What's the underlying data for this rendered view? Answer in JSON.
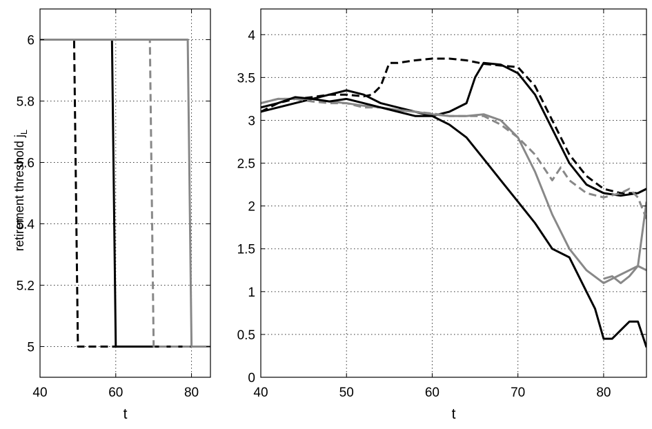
{
  "chart_data": [
    {
      "type": "line",
      "title": "",
      "xlabel": "t",
      "ylabel": "retirement threshold j",
      "ylabel_subscript": "L",
      "xlim": [
        40,
        85
      ],
      "ylim": [
        4.9,
        6.1
      ],
      "xticks": [
        40,
        60,
        80
      ],
      "yticks": [
        5,
        5.2,
        5.4,
        5.6,
        5.8,
        6
      ],
      "ytick_labels": [
        "5",
        "5.2",
        "5.4",
        "5.6",
        "5.8",
        "6"
      ],
      "grid": true,
      "series": [
        {
          "color": "#000000",
          "style": "dashed",
          "x": [
            40,
            49,
            50,
            60
          ],
          "y": [
            6,
            6,
            5,
            5
          ]
        },
        {
          "color": "#000000",
          "style": "solid",
          "x": [
            40,
            59,
            60,
            80
          ],
          "y": [
            6,
            6,
            5,
            5
          ]
        },
        {
          "color": "#888888",
          "style": "dashed",
          "x": [
            40,
            69,
            70,
            80
          ],
          "y": [
            6,
            6,
            5,
            5
          ]
        },
        {
          "color": "#888888",
          "style": "solid",
          "x": [
            40,
            79,
            80,
            85
          ],
          "y": [
            6,
            6,
            5,
            5
          ]
        }
      ]
    },
    {
      "type": "line",
      "title": "",
      "xlabel": "t",
      "ylabel": "",
      "xlim": [
        40,
        85
      ],
      "ylim": [
        0,
        4.3
      ],
      "xticks": [
        40,
        50,
        60,
        70,
        80
      ],
      "yticks": [
        0,
        0.5,
        1,
        1.5,
        2,
        2.5,
        3,
        3.5,
        4
      ],
      "ytick_labels": [
        "0",
        "0.5",
        "1",
        "1.5",
        "2",
        "2.5",
        "3",
        "3.5",
        "4"
      ],
      "grid": true,
      "series": [
        {
          "color": "#000000",
          "style": "dashed",
          "x": [
            40,
            42,
            44,
            46,
            48,
            50,
            52,
            53,
            54,
            55,
            56,
            58,
            60,
            62,
            64,
            66,
            68,
            70,
            72,
            74,
            76,
            78,
            80,
            82,
            84,
            85
          ],
          "y": [
            3.1,
            3.2,
            3.25,
            3.27,
            3.3,
            3.3,
            3.28,
            3.3,
            3.4,
            3.67,
            3.67,
            3.7,
            3.72,
            3.72,
            3.7,
            3.66,
            3.64,
            3.62,
            3.4,
            3.0,
            2.6,
            2.35,
            2.2,
            2.15,
            2.15,
            2.2
          ]
        },
        {
          "color": "#000000",
          "style": "solid",
          "x": [
            40,
            42,
            44,
            46,
            48,
            50,
            52,
            54,
            56,
            58,
            60,
            62,
            64,
            65,
            66,
            68,
            70,
            72,
            74,
            76,
            78,
            80,
            82,
            84,
            85
          ],
          "y": [
            3.1,
            3.15,
            3.2,
            3.25,
            3.3,
            3.35,
            3.3,
            3.2,
            3.15,
            3.1,
            3.05,
            3.1,
            3.2,
            3.5,
            3.67,
            3.65,
            3.55,
            3.3,
            2.9,
            2.5,
            2.25,
            2.15,
            2.12,
            2.15,
            2.2
          ]
        },
        {
          "color": "#888888",
          "style": "dashed",
          "x": [
            40,
            42,
            44,
            46,
            48,
            50,
            52,
            54,
            56,
            58,
            60,
            62,
            64,
            66,
            68,
            70,
            72,
            74,
            75,
            76,
            78,
            80,
            82,
            83,
            84,
            85
          ],
          "y": [
            3.2,
            3.25,
            3.25,
            3.22,
            3.2,
            3.2,
            3.15,
            3.15,
            3.12,
            3.1,
            3.08,
            3.05,
            3.05,
            3.05,
            2.95,
            2.8,
            2.6,
            2.3,
            2.45,
            2.3,
            2.15,
            2.1,
            2.15,
            2.2,
            2.1,
            1.85
          ]
        },
        {
          "color": "#888888",
          "style": "solid",
          "x": [
            40,
            42,
            44,
            46,
            48,
            50,
            52,
            54,
            56,
            58,
            60,
            62,
            64,
            66,
            68,
            70,
            72,
            74,
            76,
            78,
            80,
            81,
            82,
            83,
            84,
            85
          ],
          "y": [
            3.2,
            3.25,
            3.25,
            3.25,
            3.22,
            3.2,
            3.17,
            3.15,
            3.12,
            3.1,
            3.07,
            3.05,
            3.05,
            3.07,
            3.0,
            2.8,
            2.4,
            1.9,
            1.5,
            1.25,
            1.1,
            1.15,
            1.2,
            1.25,
            1.3,
            1.25
          ]
        },
        {
          "color": "#888888",
          "style": "solid",
          "x": [
            80,
            81,
            82,
            83,
            84,
            85
          ],
          "y": [
            1.15,
            1.18,
            1.1,
            1.18,
            1.3,
            2.05
          ]
        },
        {
          "color": "#000000",
          "style": "solid",
          "x": [
            40,
            42,
            44,
            46,
            48,
            50,
            52,
            54,
            56,
            58,
            60,
            62,
            64,
            66,
            68,
            70,
            72,
            74,
            76,
            78,
            79,
            80,
            81,
            82,
            83,
            84,
            85
          ],
          "y": [
            3.15,
            3.2,
            3.27,
            3.25,
            3.22,
            3.25,
            3.2,
            3.15,
            3.1,
            3.05,
            3.05,
            2.95,
            2.8,
            2.55,
            2.3,
            2.05,
            1.8,
            1.5,
            1.4,
            1.0,
            0.8,
            0.45,
            0.45,
            0.55,
            0.65,
            0.65,
            0.35
          ]
        }
      ]
    }
  ]
}
